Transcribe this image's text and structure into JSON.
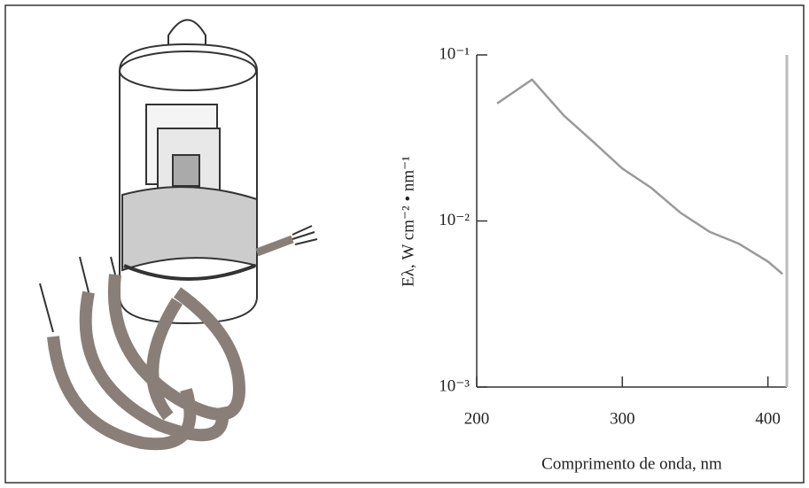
{
  "chart_data": {
    "type": "line",
    "x_label": "Comprimento de onda, nm",
    "y_label": "Eλ, W cm⁻² • nm⁻¹",
    "x": [
      214,
      238,
      260,
      280,
      300,
      320,
      340,
      360,
      380,
      400,
      410
    ],
    "series": [
      {
        "color": "#9a9a9a",
        "values": [
          0.051,
          0.071,
          0.043,
          0.03,
          0.0207,
          0.0158,
          0.0112,
          0.0086,
          0.0073,
          0.0057,
          0.0048
        ]
      }
    ],
    "xlim": [
      200,
      413
    ],
    "xticks": [
      200,
      300,
      400
    ],
    "ylim": [
      0.001,
      0.1
    ],
    "log_y": true,
    "yticks": [
      {
        "value": 0.1,
        "label": "10⁻¹"
      },
      {
        "value": 0.01,
        "label": "10⁻²"
      },
      {
        "value": 0.001,
        "label": "10⁻³"
      }
    ]
  }
}
